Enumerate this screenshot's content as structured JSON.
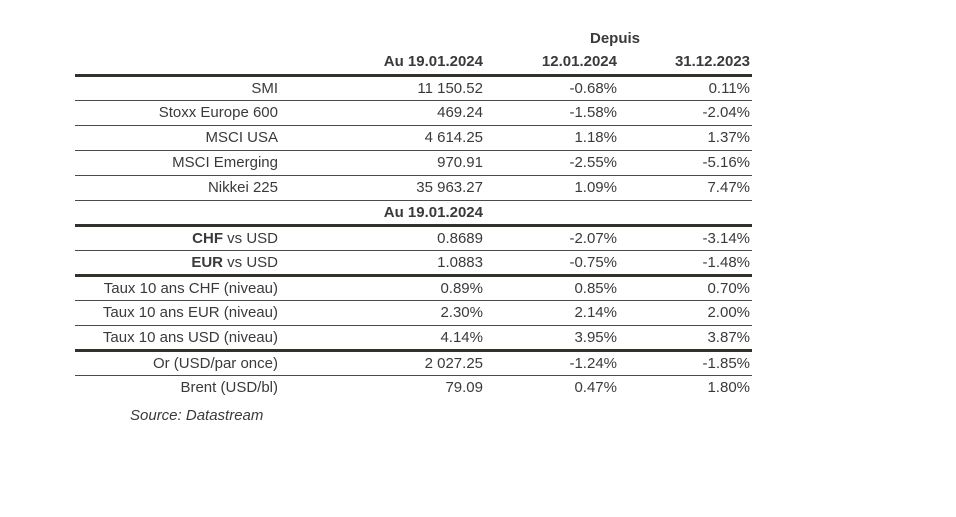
{
  "colors": {
    "background": "#ffffff",
    "text": "#3a3a3a",
    "rule_thin": "#4b4b4b",
    "rule_thick": "#33312c"
  },
  "table": {
    "depuis_label": "Depuis",
    "column_headers": {
      "value": "Au 19.01.2024",
      "since_1": "12.01.2024",
      "since_2": "31.12.2023"
    },
    "section_header": "Au 19.01.2024",
    "rows": [
      {
        "label_bold": "",
        "label": "SMI",
        "value": "11 150.52",
        "since_1": "-0.68%",
        "since_2": "0.11%"
      },
      {
        "label_bold": "",
        "label": "Stoxx Europe 600",
        "value": "469.24",
        "since_1": "-1.58%",
        "since_2": "-2.04%"
      },
      {
        "label_bold": "",
        "label": "MSCI USA",
        "value": "4 614.25",
        "since_1": "1.18%",
        "since_2": "1.37%"
      },
      {
        "label_bold": "",
        "label": "MSCI Emerging",
        "value": "970.91",
        "since_1": "-2.55%",
        "since_2": "-5.16%"
      },
      {
        "label_bold": "",
        "label": "Nikkei 225",
        "value": "35 963.27",
        "since_1": "1.09%",
        "since_2": "7.47%"
      },
      {
        "label_bold": "CHF",
        "label": " vs USD",
        "value": "0.8689",
        "since_1": "-2.07%",
        "since_2": "-3.14%"
      },
      {
        "label_bold": "EUR",
        "label": " vs USD",
        "value": "1.0883",
        "since_1": "-0.75%",
        "since_2": "-1.48%"
      },
      {
        "label_bold": "",
        "label": "Taux 10 ans CHF (niveau)",
        "value": "0.89%",
        "since_1": "0.85%",
        "since_2": "0.70%"
      },
      {
        "label_bold": "",
        "label": "Taux 10 ans EUR (niveau)",
        "value": "2.30%",
        "since_1": "2.14%",
        "since_2": "2.00%"
      },
      {
        "label_bold": "",
        "label": "Taux 10 ans USD (niveau)",
        "value": "4.14%",
        "since_1": "3.95%",
        "since_2": "3.87%"
      },
      {
        "label_bold": "",
        "label": "Or (USD/par once)",
        "value": "2 027.25",
        "since_1": "-1.24%",
        "since_2": "-1.85%"
      },
      {
        "label_bold": "",
        "label": "Brent (USD/bl)",
        "value": "79.09",
        "since_1": "0.47%",
        "since_2": "1.80%"
      }
    ],
    "source": "Source: Datastream"
  }
}
